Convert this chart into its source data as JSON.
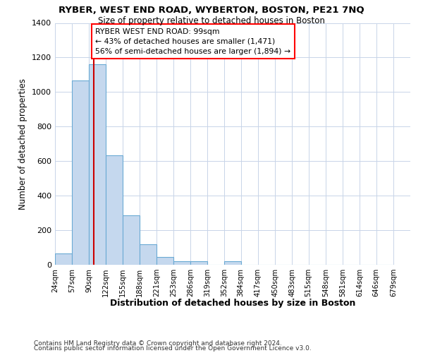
{
  "title": "RYBER, WEST END ROAD, WYBERTON, BOSTON, PE21 7NQ",
  "subtitle": "Size of property relative to detached houses in Boston",
  "xlabel": "Distribution of detached houses by size in Boston",
  "ylabel": "Number of detached properties",
  "footer1": "Contains HM Land Registry data © Crown copyright and database right 2024.",
  "footer2": "Contains public sector information licensed under the Open Government Licence v3.0.",
  "bins": [
    24,
    57,
    90,
    122,
    155,
    188,
    221,
    253,
    286,
    319,
    352,
    384,
    417,
    450,
    483,
    515,
    548,
    581,
    614,
    646,
    679
  ],
  "bar_heights": [
    65,
    1065,
    1160,
    635,
    285,
    120,
    47,
    20,
    20,
    0,
    20,
    0,
    0,
    0,
    0,
    0,
    0,
    0,
    0,
    0
  ],
  "bar_color": "#c5d8ee",
  "bar_edge_color": "#6aaad4",
  "annotation_line1": "RYBER WEST END ROAD: 99sqm",
  "annotation_line2": "← 43% of detached houses are smaller (1,471)",
  "annotation_line3": "56% of semi-detached houses are larger (1,894) →",
  "vline_x": 99,
  "vline_color": "#cc0000",
  "ylim": [
    0,
    1400
  ],
  "yticks": [
    0,
    200,
    400,
    600,
    800,
    1000,
    1200,
    1400
  ],
  "background_color": "#ffffff",
  "grid_color": "#c8d4e8"
}
